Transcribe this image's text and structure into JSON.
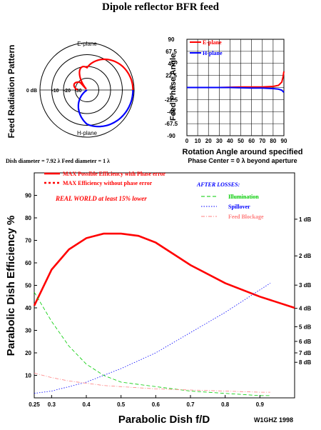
{
  "title": "Dipole reflector BFR feed",
  "polar": {
    "ylabel": "Feed Radiation Pattern",
    "top_label": "E-plane",
    "bottom_label": "H-plane",
    "ring_labels": [
      "0 dB",
      "-10",
      "-20",
      "-30"
    ],
    "caption": "Dish diameter = 7.92 λ  Feed diameter = 1 λ",
    "e_color": "#ff0000",
    "h_color": "#0000ff"
  },
  "phase_chart": {
    "ylabel": "Feed Phase Angle",
    "xlabel": "Rotation Angle around specified",
    "caption": "Phase Center = 0 λ beyond aperture",
    "legend": [
      "E-plane",
      "H-plane"
    ],
    "y_ticks": [
      "90",
      "67.5",
      "45",
      "22.5",
      "0",
      "-22.5",
      "-45",
      "-67.5",
      "-90"
    ],
    "x_ticks": [
      "0",
      "10",
      "20",
      "30",
      "40",
      "50",
      "60",
      "70",
      "80",
      "90"
    ]
  },
  "chart_data": [
    {
      "type": "line",
      "title": "Feed Phase Angle",
      "xlabel": "Rotation Angle around specified",
      "ylabel": "Feed Phase Angle",
      "xlim": [
        0,
        90
      ],
      "ylim": [
        -90,
        90
      ],
      "legend_position": "top-left",
      "series": [
        {
          "name": "E-plane",
          "color": "#ff0000",
          "x": [
            0,
            10,
            20,
            30,
            40,
            50,
            60,
            70,
            80,
            85,
            88,
            89,
            90
          ],
          "y": [
            0,
            0,
            0,
            0,
            0.5,
            1,
            1,
            1,
            2,
            4,
            10,
            18,
            30
          ]
        },
        {
          "name": "H-plane",
          "color": "#0000ff",
          "x": [
            0,
            10,
            20,
            30,
            40,
            50,
            60,
            70,
            80,
            85,
            88,
            89,
            90
          ],
          "y": [
            0,
            0,
            0,
            0,
            0,
            -0.5,
            -1,
            -1,
            -2,
            -3,
            -5,
            -7,
            -9
          ]
        }
      ]
    },
    {
      "type": "line",
      "title": "",
      "xlabel": "Parabolic Dish f/D",
      "ylabel": "Parabolic Dish Efficiency %",
      "xlim": [
        0.25,
        1.0
      ],
      "ylim": [
        0,
        100
      ],
      "x_tick_labels": [
        "0.25",
        "0.3",
        "0.4",
        "0.5",
        "0.6",
        "0.7",
        "0.8",
        "0.9"
      ],
      "y_tick_labels": [
        "10",
        "20",
        "30",
        "40",
        "50",
        "60",
        "70",
        "80",
        "90"
      ],
      "right_axis_labels": [
        "1 dB",
        "2 dB",
        "3 dB",
        "4 dB",
        "5 dB",
        "6 dB",
        "7 dB",
        "8 dB"
      ],
      "right_axis_positions": [
        79.4,
        63.1,
        50.1,
        39.8,
        31.6,
        25.1,
        20.0,
        15.8
      ],
      "legend_labels": [
        "MAX Possible Efficiency with Phase error",
        "MAX Efficiency without phase error"
      ],
      "annotation": "REAL WORLD at least 15% lower",
      "losses_title": "AFTER LOSSES:",
      "losses_labels": [
        "Illumination",
        "Spillover",
        "Feed Blockage"
      ],
      "series": [
        {
          "name": "MAX Possible Efficiency with Phase error",
          "color": "#ff0000",
          "x": [
            0.25,
            0.3,
            0.35,
            0.4,
            0.45,
            0.5,
            0.55,
            0.6,
            0.7,
            0.8,
            0.9,
            1.0
          ],
          "y": [
            41,
            57,
            66,
            71,
            73,
            73,
            72,
            69,
            59,
            51,
            45,
            40
          ]
        },
        {
          "name": "MAX Efficiency without phase error",
          "color": "#ff0000",
          "x": [
            0.25,
            0.3,
            0.35,
            0.4,
            0.45,
            0.5,
            0.55,
            0.6,
            0.7,
            0.8,
            0.9,
            1.0
          ],
          "y": [
            41.5,
            57.5,
            66.5,
            71.5,
            73.5,
            73.5,
            72.5,
            69.5,
            59.5,
            51.5,
            45.5,
            40.5
          ]
        },
        {
          "name": "Illumination",
          "color": "#00cc00",
          "x": [
            0.25,
            0.3,
            0.35,
            0.4,
            0.45,
            0.5,
            0.6,
            0.7,
            0.8,
            0.9,
            0.93
          ],
          "y": [
            47,
            34,
            23,
            15,
            10,
            7,
            5,
            3,
            2,
            1,
            1
          ]
        },
        {
          "name": "Spillover",
          "color": "#0000ff",
          "x": [
            0.25,
            0.3,
            0.35,
            0.4,
            0.45,
            0.5,
            0.6,
            0.7,
            0.8,
            0.9,
            0.93
          ],
          "y": [
            2,
            3,
            5,
            7,
            10,
            13,
            20,
            29,
            38,
            48,
            51
          ]
        },
        {
          "name": "Feed Blockage",
          "color": "#ff8080",
          "x": [
            0.25,
            0.3,
            0.35,
            0.4,
            0.45,
            0.5,
            0.6,
            0.7,
            0.8,
            0.9,
            0.93
          ],
          "y": [
            11,
            9,
            7.5,
            6.5,
            5.5,
            5,
            4,
            3.5,
            3,
            2.5,
            2.5
          ]
        }
      ]
    }
  ],
  "credit": "W1GHZ 1998"
}
